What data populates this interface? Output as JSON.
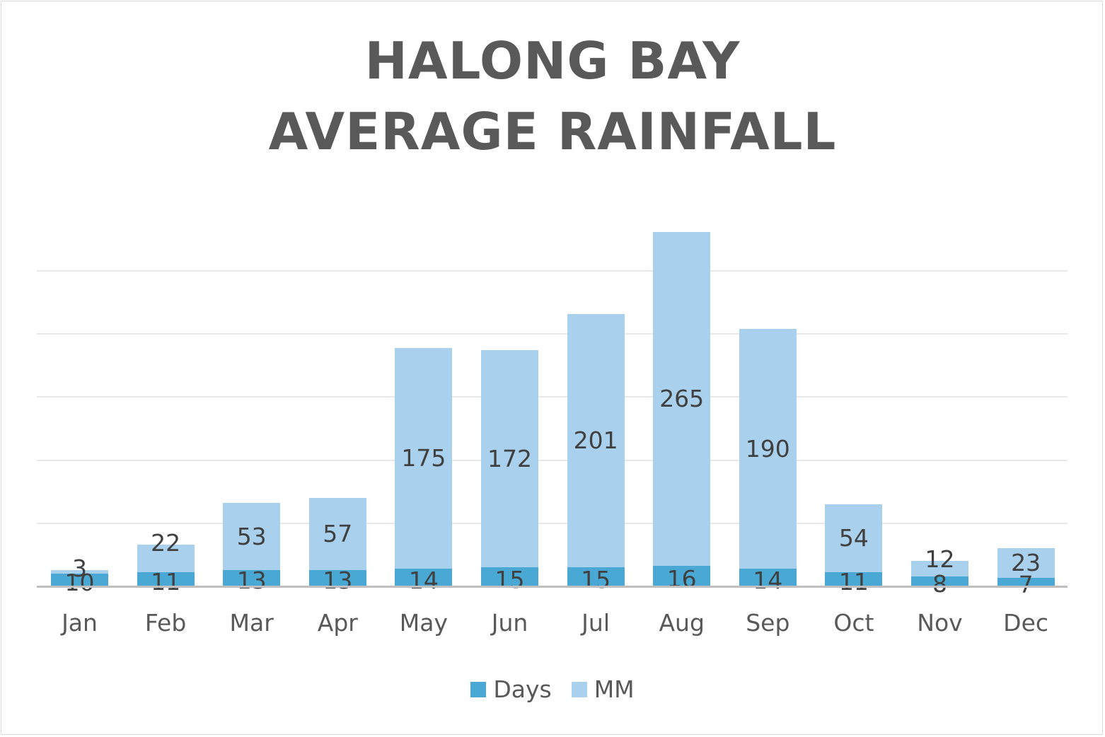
{
  "chart_data": {
    "type": "bar",
    "stacked": true,
    "title": "HALONG BAY AVERAGE RAINFALL",
    "title_lines": [
      "HALONG BAY",
      "AVERAGE RAINFALL"
    ],
    "categories": [
      "Jan",
      "Feb",
      "Mar",
      "Apr",
      "May",
      "Jun",
      "Jul",
      "Aug",
      "Sep",
      "Oct",
      "Nov",
      "Dec"
    ],
    "series": [
      {
        "name": "Days",
        "color": "#4aa9d4",
        "values": [
          10,
          11,
          13,
          13,
          14,
          15,
          15,
          16,
          14,
          11,
          8,
          7
        ]
      },
      {
        "name": "MM",
        "color": "#a9d0ec",
        "values": [
          3,
          22,
          53,
          57,
          175,
          172,
          201,
          265,
          190,
          54,
          12,
          23
        ]
      }
    ],
    "xlabel": "",
    "ylabel": "",
    "ylim": [
      0,
      300
    ],
    "y_axis_visible": false,
    "grid": true,
    "gridline_step": 50,
    "data_labels": true,
    "legend_position": "bottom"
  },
  "legend": [
    {
      "label": "Days",
      "color": "#4aa9d4"
    },
    {
      "label": "MM",
      "color": "#a9d0ec"
    }
  ]
}
